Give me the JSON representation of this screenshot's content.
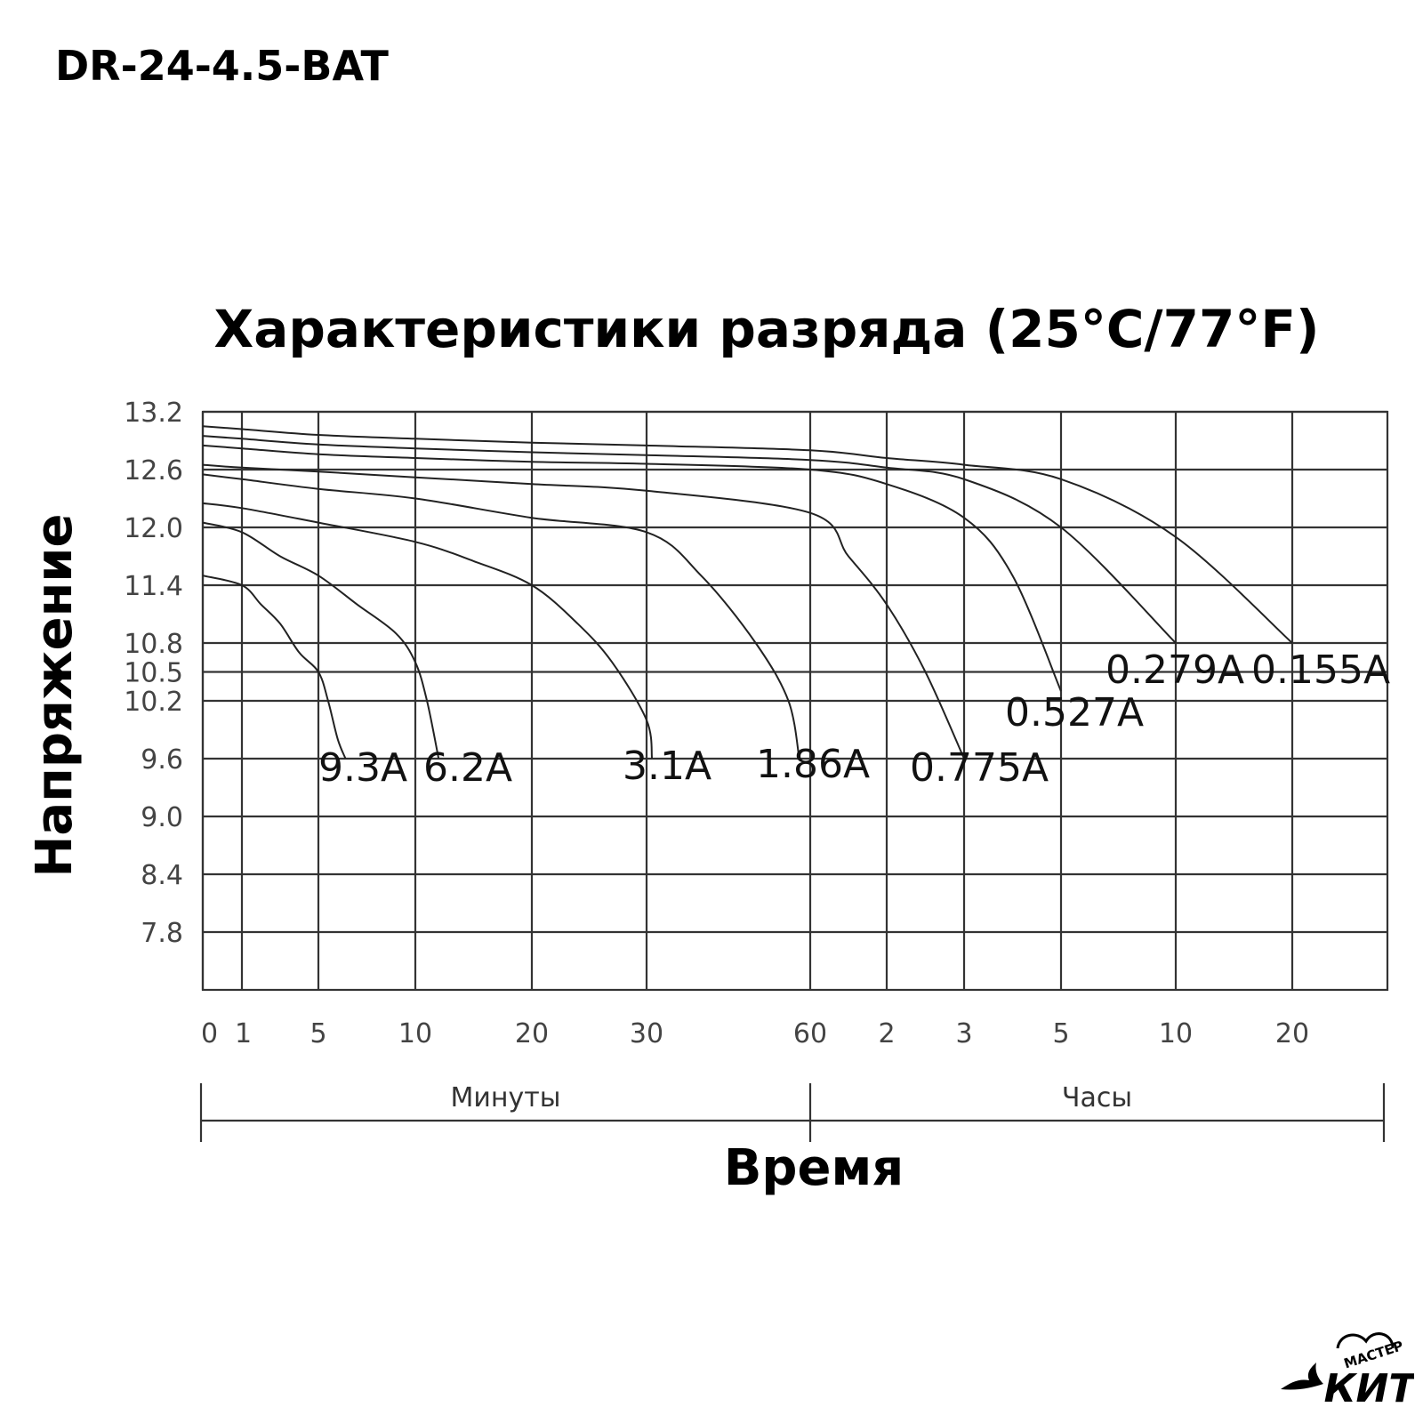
{
  "product": {
    "title": "DR-24-4.5-BAT"
  },
  "chart_data": {
    "type": "line",
    "title": "Характеристики разряда (25°C/77°F)",
    "xlabel": "Время",
    "ylabel": "Напряжение",
    "grid": true,
    "legend": "inline labels at curve ends",
    "x_scale": "custom (minutes then hours)",
    "x_units_note_minutes": "Минуты",
    "x_units_note_hours": "Часы",
    "x_ticks": [
      {
        "label": "0",
        "minutes": 0
      },
      {
        "label": "1",
        "minutes": 1
      },
      {
        "label": "5",
        "minutes": 5
      },
      {
        "label": "10",
        "minutes": 10
      },
      {
        "label": "20",
        "minutes": 20
      },
      {
        "label": "30",
        "minutes": 30
      },
      {
        "label": "60",
        "minutes": 60
      },
      {
        "label": "2",
        "minutes": 120
      },
      {
        "label": "3",
        "minutes": 180
      },
      {
        "label": "5",
        "minutes": 300
      },
      {
        "label": "10",
        "minutes": 600
      },
      {
        "label": "20",
        "minutes": 1200
      }
    ],
    "y_ticks": [
      {
        "label": "13.2",
        "v": 13.2
      },
      {
        "label": "12.6",
        "v": 12.6
      },
      {
        "label": "12.0",
        "v": 12.0
      },
      {
        "label": "11.4",
        "v": 11.4
      },
      {
        "label": "10.8",
        "v": 10.8
      },
      {
        "label": "10.5",
        "v": 10.5
      },
      {
        "label": "10.2",
        "v": 10.2
      },
      {
        "label": "9.6",
        "v": 9.6
      },
      {
        "label": "9.0",
        "v": 9.0
      },
      {
        "label": "8.4",
        "v": 8.4
      },
      {
        "label": "7.8",
        "v": 7.8
      }
    ],
    "ylim": [
      7.2,
      13.2
    ],
    "sections": [
      {
        "label": "Минуты",
        "from_minutes": 0,
        "to_minutes": 60
      },
      {
        "label": "Часы",
        "from_minutes": 60,
        "to_minutes": 1800
      }
    ],
    "series": [
      {
        "name": "9.3A",
        "points": [
          [
            0,
            11.5
          ],
          [
            1,
            11.4
          ],
          [
            2,
            11.2
          ],
          [
            3,
            11.0
          ],
          [
            4,
            10.7
          ],
          [
            5,
            10.5
          ],
          [
            5.5,
            10.2
          ],
          [
            6,
            9.8
          ],
          [
            6.4,
            9.6
          ]
        ]
      },
      {
        "name": "6.2A",
        "points": [
          [
            0,
            12.05
          ],
          [
            1,
            11.95
          ],
          [
            3,
            11.7
          ],
          [
            5,
            11.5
          ],
          [
            7,
            11.2
          ],
          [
            9,
            10.9
          ],
          [
            10,
            10.6
          ],
          [
            11,
            10.2
          ],
          [
            12,
            9.6
          ]
        ]
      },
      {
        "name": "3.1A",
        "points": [
          [
            0,
            12.25
          ],
          [
            1,
            12.2
          ],
          [
            5,
            12.05
          ],
          [
            10,
            11.85
          ],
          [
            15,
            11.65
          ],
          [
            20,
            11.4
          ],
          [
            24,
            11.0
          ],
          [
            27,
            10.6
          ],
          [
            30,
            10.0
          ],
          [
            31,
            9.6
          ]
        ]
      },
      {
        "name": "1.86A",
        "points": [
          [
            0,
            12.55
          ],
          [
            1,
            12.5
          ],
          [
            5,
            12.4
          ],
          [
            10,
            12.3
          ],
          [
            20,
            12.1
          ],
          [
            30,
            11.95
          ],
          [
            40,
            11.5
          ],
          [
            50,
            10.8
          ],
          [
            56,
            10.2
          ],
          [
            58,
            9.6
          ]
        ]
      },
      {
        "name": "0.775A",
        "points": [
          [
            0,
            12.65
          ],
          [
            1,
            12.62
          ],
          [
            5,
            12.58
          ],
          [
            10,
            12.52
          ],
          [
            20,
            12.45
          ],
          [
            30,
            12.38
          ],
          [
            60,
            12.15
          ],
          [
            90,
            11.7
          ],
          [
            120,
            11.2
          ],
          [
            150,
            10.5
          ],
          [
            180,
            9.6
          ]
        ]
      },
      {
        "name": "0.527A",
        "points": [
          [
            0,
            12.85
          ],
          [
            1,
            12.82
          ],
          [
            5,
            12.76
          ],
          [
            10,
            12.72
          ],
          [
            20,
            12.68
          ],
          [
            30,
            12.66
          ],
          [
            60,
            12.6
          ],
          [
            120,
            12.45
          ],
          [
            180,
            12.1
          ],
          [
            240,
            11.5
          ],
          [
            300,
            10.3
          ]
        ]
      },
      {
        "name": "0.279A",
        "points": [
          [
            0,
            12.95
          ],
          [
            1,
            12.92
          ],
          [
            5,
            12.86
          ],
          [
            10,
            12.82
          ],
          [
            20,
            12.78
          ],
          [
            30,
            12.75
          ],
          [
            60,
            12.7
          ],
          [
            120,
            12.62
          ],
          [
            180,
            12.5
          ],
          [
            300,
            12.0
          ],
          [
            600,
            10.8
          ]
        ]
      },
      {
        "name": "0.155A",
        "points": [
          [
            0,
            13.05
          ],
          [
            1,
            13.02
          ],
          [
            5,
            12.96
          ],
          [
            10,
            12.92
          ],
          [
            20,
            12.88
          ],
          [
            30,
            12.85
          ],
          [
            60,
            12.8
          ],
          [
            120,
            12.72
          ],
          [
            180,
            12.65
          ],
          [
            300,
            12.5
          ],
          [
            600,
            11.9
          ],
          [
            1200,
            10.8
          ]
        ]
      }
    ]
  },
  "logo": {
    "text": "КИТ",
    "tagline": "МАСТЕР"
  }
}
